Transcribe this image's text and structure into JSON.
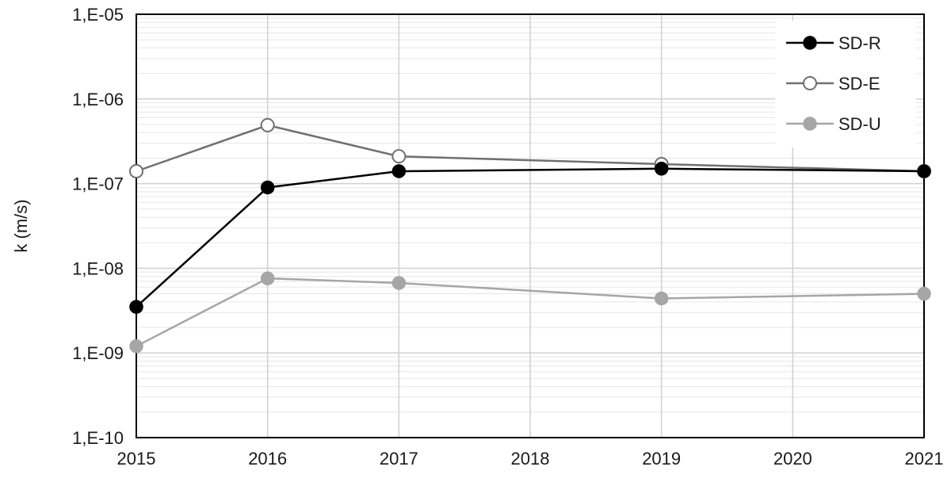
{
  "chart_data": {
    "type": "line",
    "title": "",
    "xlabel": "",
    "ylabel": "k (m/s)",
    "x_scale": "linear",
    "y_scale": "log",
    "xlim": [
      2015,
      2021
    ],
    "ylim": [
      1e-10,
      1e-05
    ],
    "x_ticks": [
      2015,
      2016,
      2017,
      2018,
      2019,
      2020,
      2021
    ],
    "x_tick_labels": [
      "2015",
      "2016",
      "2017",
      "2018",
      "2019",
      "2020",
      "2021"
    ],
    "y_ticks": [
      1e-10,
      1e-09,
      1e-08,
      1e-07,
      1e-06,
      1e-05
    ],
    "y_tick_labels": [
      "1,E-10",
      "1,E-09",
      "1,E-08",
      "1,E-07",
      "1,E-06",
      "1,E-05"
    ],
    "grid": {
      "major": true,
      "minor_y": true,
      "color": "#d0d0d0"
    },
    "legend": {
      "position": "top-right"
    },
    "series": [
      {
        "name": "SD-R",
        "color": "#000000",
        "marker": "filled-circle",
        "marker_fill": "#000000",
        "x": [
          2015,
          2016,
          2017,
          2019,
          2021
        ],
        "y": [
          3.5e-09,
          9e-08,
          1.4e-07,
          1.5e-07,
          1.4e-07
        ]
      },
      {
        "name": "SD-E",
        "color": "#707070",
        "marker": "open-circle",
        "marker_fill": "#ffffff",
        "x": [
          2015,
          2016,
          2017,
          2019,
          2021
        ],
        "y": [
          1.4e-07,
          4.9e-07,
          2.1e-07,
          1.7e-07,
          1.4e-07
        ]
      },
      {
        "name": "SD-U",
        "color": "#a6a6a6",
        "marker": "filled-circle",
        "marker_fill": "#a6a6a6",
        "x": [
          2015,
          2016,
          2017,
          2019,
          2021
        ],
        "y": [
          1.2e-09,
          7.6e-09,
          6.7e-09,
          4.4e-09,
          5e-09
        ]
      }
    ]
  }
}
